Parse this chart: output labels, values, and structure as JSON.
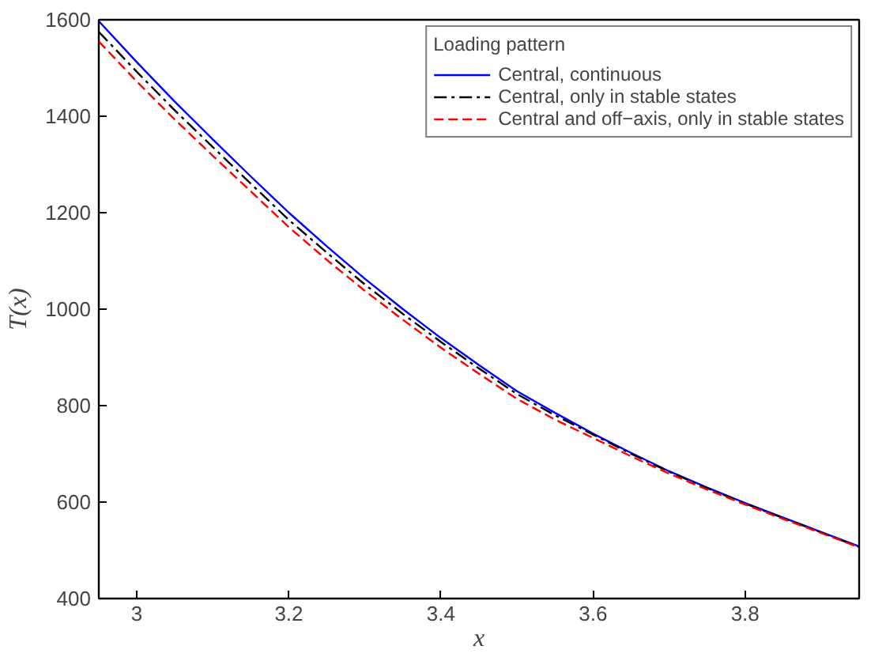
{
  "chart_data": {
    "type": "line",
    "xlabel": "x",
    "ylabel": "T(x)",
    "legend_title": "Loading pattern",
    "legend": "top right",
    "grid": false,
    "marker": "none",
    "x": [
      2.95,
      3.0,
      3.05,
      3.1,
      3.15,
      3.2,
      3.25,
      3.3,
      3.35,
      3.4,
      3.45,
      3.5,
      3.55,
      3.6,
      3.65,
      3.7,
      3.75,
      3.8,
      3.85,
      3.9,
      3.95
    ],
    "xlim": [
      2.95,
      3.95
    ],
    "xticks": [
      {
        "value": 3,
        "label": "3"
      },
      3.2,
      3.4,
      3.6,
      3.8
    ],
    "ylim": [
      400,
      1600
    ],
    "yticks": [
      400,
      600,
      800,
      1000,
      1200,
      1400,
      1600
    ],
    "series": [
      {
        "name": "Central, continuous",
        "color": "#0000ff",
        "line_style": "solid",
        "values": [
          1597,
          1512,
          1430,
          1352,
          1275,
          1200,
          1130,
          1063,
          1000,
          940,
          884,
          830,
          785,
          742,
          702,
          664,
          630,
          598,
          568,
          538,
          508
        ]
      },
      {
        "name": "Central, only in stable states",
        "color": "#000000",
        "line_style": "dashdot",
        "values": [
          1575,
          1492,
          1412,
          1336,
          1260,
          1185,
          1117,
          1051,
          990,
          932,
          877,
          824,
          780,
          740,
          700,
          663,
          629,
          597,
          567,
          537,
          507
        ]
      },
      {
        "name": "Central and off−axis, only in stable states",
        "color": "#ff0000",
        "line_style": "dashed",
        "values": [
          1555,
          1472,
          1393,
          1318,
          1244,
          1170,
          1102,
          1038,
          978,
          920,
          866,
          814,
          771,
          733,
          695,
          659,
          626,
          595,
          565,
          536,
          506
        ]
      }
    ]
  }
}
